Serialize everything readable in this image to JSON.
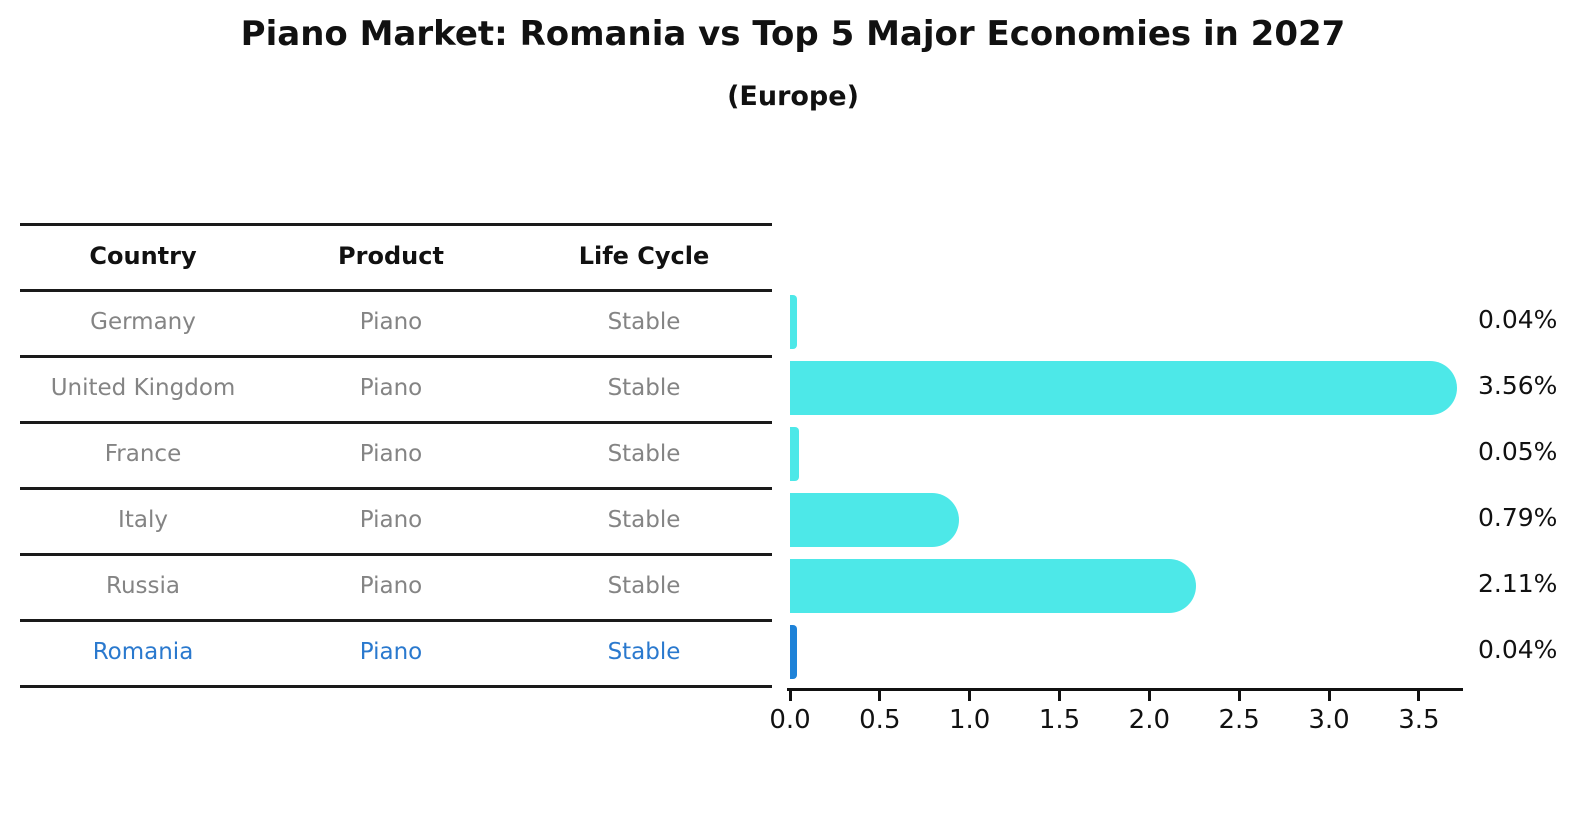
{
  "title": "Piano Market: Romania vs Top 5 Major Economies in 2027",
  "subtitle": "(Europe)",
  "table": {
    "headers": [
      "Country",
      "Product",
      "Life Cycle"
    ],
    "rows": [
      {
        "country": "Germany",
        "product": "Piano",
        "life_cycle": "Stable",
        "highlight": false
      },
      {
        "country": "United Kingdom",
        "product": "Piano",
        "life_cycle": "Stable",
        "highlight": false
      },
      {
        "country": "France",
        "product": "Piano",
        "life_cycle": "Stable",
        "highlight": false
      },
      {
        "country": "Italy",
        "product": "Piano",
        "life_cycle": "Stable",
        "highlight": false
      },
      {
        "country": "Russia",
        "product": "Piano",
        "life_cycle": "Stable",
        "highlight": false
      },
      {
        "country": "Romania",
        "product": "Piano",
        "life_cycle": "Stable",
        "highlight": true
      }
    ]
  },
  "chart_data": {
    "type": "bar",
    "orientation": "horizontal",
    "title": "Piano Market: Romania vs Top 5 Major Economies in 2027",
    "subtitle": "(Europe)",
    "categories": [
      "Germany",
      "United Kingdom",
      "France",
      "Italy",
      "Russia",
      "Romania"
    ],
    "values": [
      0.04,
      3.56,
      0.05,
      0.79,
      2.11,
      0.04
    ],
    "value_labels": [
      "0.04%",
      "3.56%",
      "0.05%",
      "0.79%",
      "2.11%",
      "0.04%"
    ],
    "xlabel": "",
    "ylabel": "",
    "xlim": [
      0,
      3.74
    ],
    "xticks": [
      0.0,
      0.5,
      1.0,
      1.5,
      2.0,
      2.5,
      3.0,
      3.5
    ],
    "xtick_labels": [
      "0.0",
      "0.5",
      "1.0",
      "1.5",
      "2.0",
      "2.5",
      "3.0",
      "3.5"
    ],
    "grid": false,
    "legend": false,
    "bar_color": "#4DE8E8",
    "highlight_color": "#1E82D8",
    "highlight_index": 5,
    "text_color": "#111111",
    "muted_text_color": "#848484",
    "highlight_text_color": "#2A79CE"
  }
}
